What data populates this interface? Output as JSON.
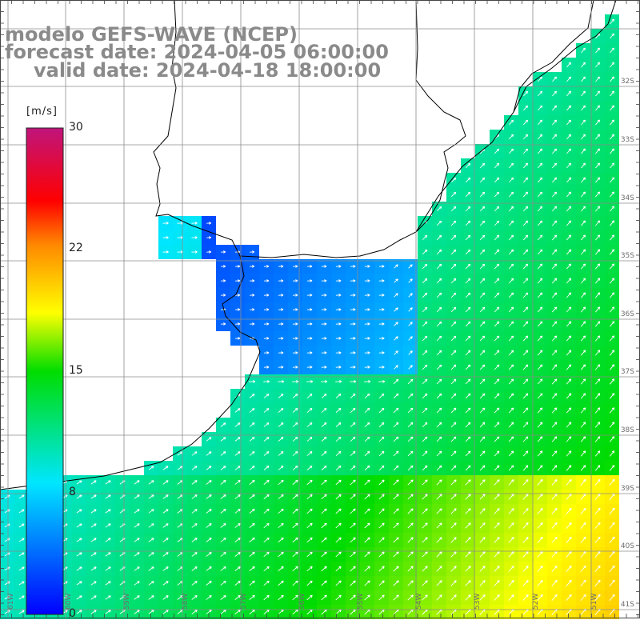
{
  "title": {
    "line1": "modelo GEFS-WAVE (NCEP)",
    "line2": "forecast date: 2024-04-05 06:00:00",
    "line3": "valid date: 2024-04-18 18:00:00"
  },
  "colorbar": {
    "unit": "[m/s]",
    "ticks": [
      "30",
      "22",
      "15",
      "8",
      "0"
    ],
    "min": 0,
    "max": 30
  },
  "map": {
    "lat_labels": [
      "32S",
      "33S",
      "34S",
      "35S",
      "36S",
      "37S",
      "38S",
      "39S",
      "40S",
      "41S"
    ],
    "lon_labels": [
      "61W",
      "60W",
      "59W",
      "58W",
      "57W",
      "56W",
      "55W",
      "54W",
      "53W",
      "52W",
      "51W"
    ],
    "colors": {
      "land": "#ffffff",
      "coastline": "#000000",
      "grid": "#8c8c8c",
      "arrow": "#ffffff"
    }
  }
}
